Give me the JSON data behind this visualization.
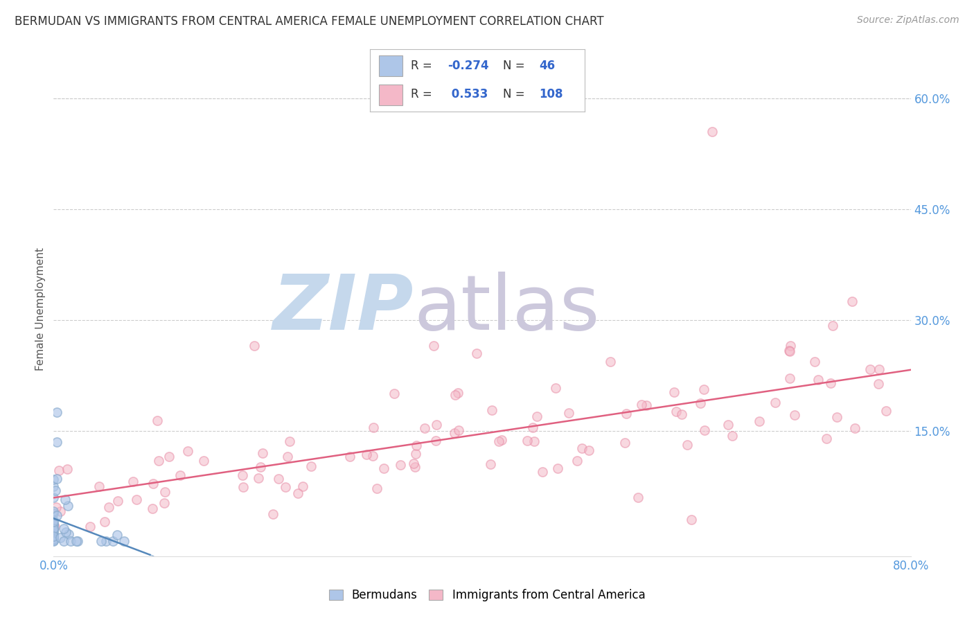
{
  "title": "BERMUDAN VS IMMIGRANTS FROM CENTRAL AMERICA FEMALE UNEMPLOYMENT CORRELATION CHART",
  "source": "Source: ZipAtlas.com",
  "ylabel": "Female Unemployment",
  "legend_labels": [
    "Bermudans",
    "Immigrants from Central America"
  ],
  "blue_R": -0.274,
  "blue_N": 46,
  "pink_R": 0.533,
  "pink_N": 108,
  "blue_legend_color": "#aec6e8",
  "pink_legend_color": "#f4b8c8",
  "blue_line_color": "#5588bb",
  "pink_line_color": "#e06080",
  "blue_scatter_edge": "#88aacc",
  "blue_scatter_face": "#aec6e8",
  "pink_scatter_edge": "#e890a8",
  "pink_scatter_face": "#f4b8c8",
  "xlim": [
    0.0,
    0.8
  ],
  "ylim": [
    -0.02,
    0.65
  ],
  "xtick_left": 0.0,
  "xtick_right": 0.8,
  "yticks_right": [
    0.15,
    0.3,
    0.45,
    0.6
  ],
  "background_color": "#ffffff",
  "grid_color": "#cccccc",
  "tick_color": "#5599dd",
  "title_color": "#333333",
  "source_color": "#999999",
  "watermark_zip_color": "#c5d8ec",
  "watermark_atlas_color": "#ccc8dc"
}
